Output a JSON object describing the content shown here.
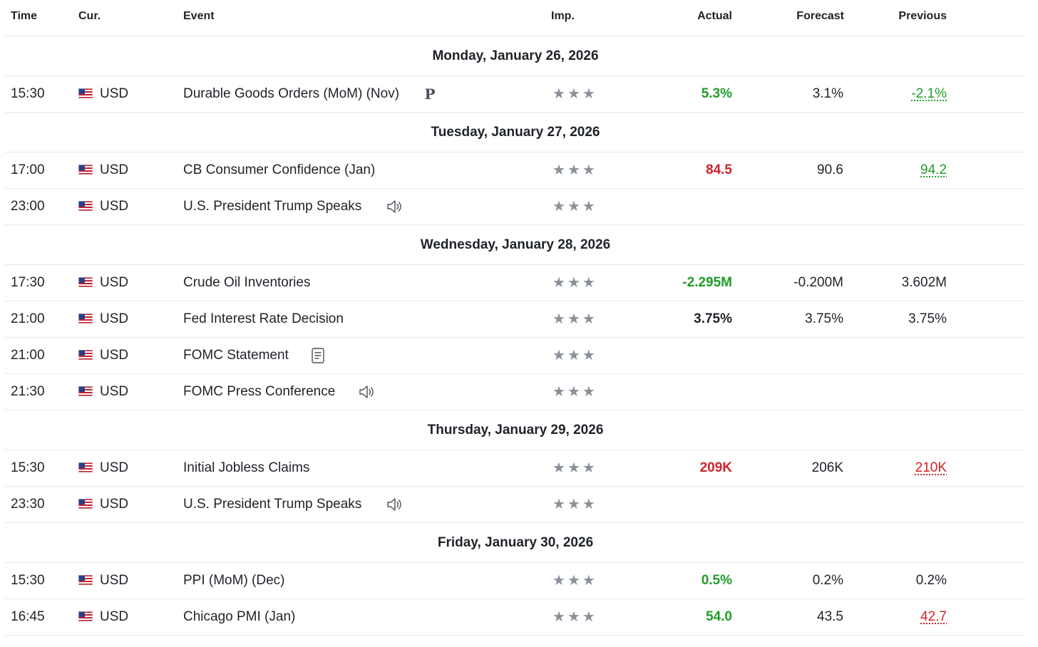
{
  "header": {
    "time": "Time",
    "currency": "Cur.",
    "event": "Event",
    "importance": "Imp.",
    "actual": "Actual",
    "forecast": "Forecast",
    "previous": "Previous"
  },
  "colors": {
    "positive": "#1f9d28",
    "negative": "#d0232b",
    "star": "#8a9099",
    "divider": "#e3e8ec"
  },
  "star_glyph": "★",
  "days": [
    {
      "label": "Monday, January 26, 2026",
      "events": [
        {
          "time": "15:30",
          "currency": "USD",
          "name": "Durable Goods Orders (MoM) (Nov)",
          "icon": "preliminary-icon",
          "icon_text": "P",
          "stars": 3,
          "actual": "5.3%",
          "actual_tone": "green",
          "forecast": "3.1%",
          "previous": "-2.1%",
          "previous_tone": "u-green"
        }
      ]
    },
    {
      "label": "Tuesday, January 27, 2026",
      "events": [
        {
          "time": "17:00",
          "currency": "USD",
          "name": "CB Consumer Confidence  (Jan)",
          "icon": "",
          "stars": 3,
          "actual": "84.5",
          "actual_tone": "red",
          "forecast": "90.6",
          "previous": "94.2",
          "previous_tone": "u-green"
        },
        {
          "time": "23:00",
          "currency": "USD",
          "name": "U.S. President Trump Speaks",
          "icon": "speaker-icon",
          "stars": 3,
          "actual": "",
          "actual_tone": "",
          "forecast": "",
          "previous": "",
          "previous_tone": ""
        }
      ]
    },
    {
      "label": "Wednesday, January 28, 2026",
      "events": [
        {
          "time": "17:30",
          "currency": "USD",
          "name": "Crude Oil Inventories",
          "icon": "",
          "stars": 3,
          "actual": "-2.295M",
          "actual_tone": "green",
          "forecast": "-0.200M",
          "previous": "3.602M",
          "previous_tone": ""
        },
        {
          "time": "21:00",
          "currency": "USD",
          "name": "Fed Interest Rate Decision",
          "icon": "",
          "stars": 3,
          "actual": "3.75%",
          "actual_tone": "dark",
          "forecast": "3.75%",
          "previous": "3.75%",
          "previous_tone": ""
        },
        {
          "time": "21:00",
          "currency": "USD",
          "name": "FOMC Statement",
          "icon": "document-icon",
          "stars": 3,
          "actual": "",
          "actual_tone": "",
          "forecast": "",
          "previous": "",
          "previous_tone": ""
        },
        {
          "time": "21:30",
          "currency": "USD",
          "name": "FOMC Press Conference",
          "icon": "speaker-icon",
          "stars": 3,
          "actual": "",
          "actual_tone": "",
          "forecast": "",
          "previous": "",
          "previous_tone": ""
        }
      ]
    },
    {
      "label": "Thursday, January 29, 2026",
      "events": [
        {
          "time": "15:30",
          "currency": "USD",
          "name": "Initial Jobless Claims",
          "icon": "",
          "stars": 3,
          "actual": "209K",
          "actual_tone": "red",
          "forecast": "206K",
          "previous": "210K",
          "previous_tone": "u-red"
        },
        {
          "time": "23:30",
          "currency": "USD",
          "name": "U.S. President Trump Speaks",
          "icon": "speaker-icon",
          "stars": 3,
          "actual": "",
          "actual_tone": "",
          "forecast": "",
          "previous": "",
          "previous_tone": ""
        }
      ]
    },
    {
      "label": "Friday, January 30, 2026",
      "events": [
        {
          "time": "15:30",
          "currency": "USD",
          "name": "PPI (MoM) (Dec)",
          "icon": "",
          "stars": 3,
          "actual": "0.5%",
          "actual_tone": "green",
          "forecast": "0.2%",
          "previous": "0.2%",
          "previous_tone": ""
        },
        {
          "time": "16:45",
          "currency": "USD",
          "name": "Chicago PMI  (Jan)",
          "icon": "",
          "stars": 3,
          "actual": "54.0",
          "actual_tone": "green",
          "forecast": "43.5",
          "previous": "42.7",
          "previous_tone": "u-red"
        }
      ]
    }
  ]
}
